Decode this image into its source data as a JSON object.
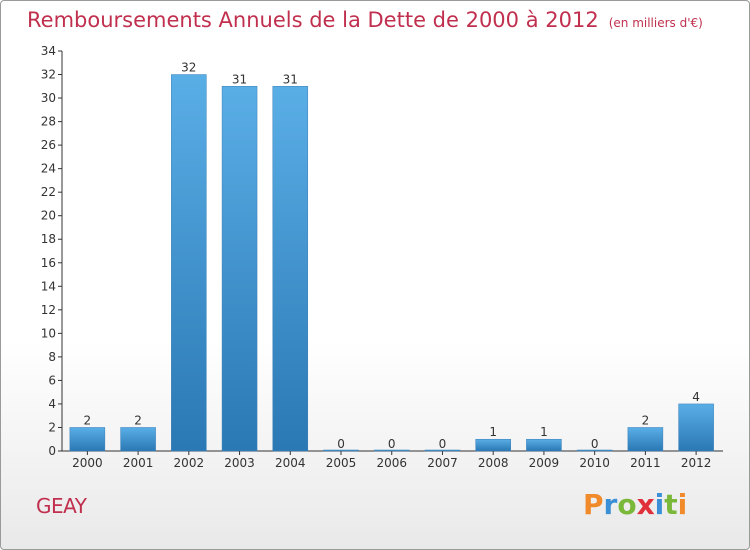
{
  "header": {
    "title": "Remboursements Annuels de la Dette de 2000 à 2012",
    "unit": "(en milliers d'€)"
  },
  "footer": {
    "commune": "GEAY",
    "logo": "Proxiti"
  },
  "colors": {
    "title": "#c0304e",
    "bar_top": "#5aaee6",
    "bar_bottom": "#2a78b4",
    "logo_letters": [
      "#f08a2a",
      "#3a8fd6",
      "#7ab83a",
      "#e0303a",
      "#3a8fd6",
      "#7ab83a",
      "#f08a2a"
    ]
  },
  "chart_data": {
    "type": "bar",
    "categories": [
      "2000",
      "2001",
      "2002",
      "2003",
      "2004",
      "2005",
      "2006",
      "2007",
      "2008",
      "2009",
      "2010",
      "2011",
      "2012"
    ],
    "values": [
      2,
      2,
      32,
      31,
      31,
      0,
      0,
      0,
      1,
      1,
      0,
      2,
      4
    ],
    "data_labels": [
      "2",
      "2",
      "32",
      "31",
      "31",
      "0",
      "0",
      "0",
      "1",
      "1",
      "0",
      "2",
      "4"
    ],
    "y_ticks": [
      "0",
      "2",
      "4",
      "6",
      "8",
      "10",
      "12",
      "14",
      "16",
      "18",
      "20",
      "22",
      "24",
      "26",
      "28",
      "30",
      "32",
      "34"
    ],
    "title": "Remboursements Annuels de la Dette de 2000 à 2012",
    "xlabel": "",
    "ylabel": "",
    "ylim": [
      0,
      34
    ],
    "grid": false,
    "legend": "none"
  }
}
